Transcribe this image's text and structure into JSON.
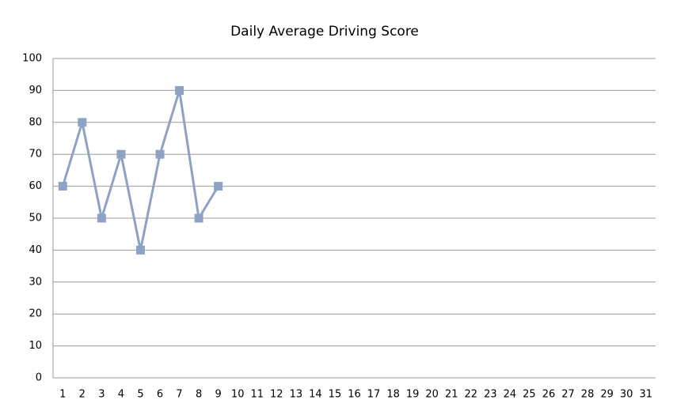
{
  "chart_data": {
    "type": "line",
    "title": "Daily Average Driving Score",
    "categories": [
      "1",
      "2",
      "3",
      "4",
      "5",
      "6",
      "7",
      "8",
      "9",
      "10",
      "11",
      "12",
      "13",
      "14",
      "15",
      "16",
      "17",
      "18",
      "19",
      "20",
      "21",
      "22",
      "23",
      "24",
      "25",
      "26",
      "27",
      "28",
      "29",
      "30",
      "31"
    ],
    "series": [
      {
        "color": "#8da2c4",
        "values": [
          60,
          80,
          50,
          70,
          40,
          70,
          90,
          50,
          60,
          null,
          null,
          null,
          null,
          null,
          null,
          null,
          null,
          null,
          null,
          null,
          null,
          null,
          null,
          null,
          null,
          null,
          null,
          null,
          null,
          null,
          null
        ]
      }
    ],
    "ylim": [
      0,
      100
    ],
    "yticks": [
      0,
      10,
      20,
      30,
      40,
      50,
      60,
      70,
      80,
      90,
      100
    ],
    "grid": true
  }
}
